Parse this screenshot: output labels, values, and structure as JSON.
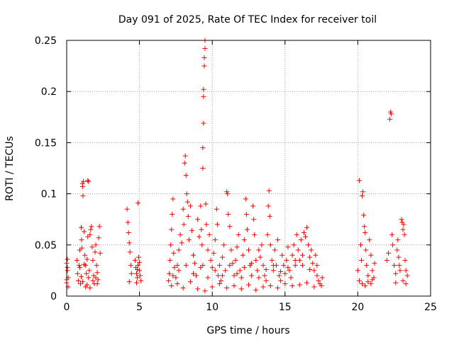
{
  "chart_data": {
    "type": "scatter",
    "title": "Day 091 of 2025, Rate Of TEC Index for receiver toil",
    "xlabel": "GPS time / hours",
    "ylabel": "ROTI / TECUs",
    "xlim": [
      0,
      25
    ],
    "ylim": [
      0,
      0.25
    ],
    "grid": true,
    "marker": "+",
    "marker_color": "#ff0000",
    "x_ticks": [
      0,
      5,
      10,
      15,
      20,
      25
    ],
    "x_tick_labels": [
      "0",
      "5",
      "10",
      "15",
      "20",
      "25"
    ],
    "y_ticks": [
      0,
      0.05,
      0.1,
      0.15,
      0.2,
      0.25
    ],
    "y_tick_labels": [
      "0",
      "0.05",
      "0.1",
      "0.15",
      "0.2",
      "0.25"
    ],
    "series": [
      {
        "name": "ROTI",
        "points": [
          [
            0.0,
            0.013
          ],
          [
            0.0,
            0.016
          ],
          [
            0.0,
            0.032
          ],
          [
            0.05,
            0.036
          ],
          [
            0.05,
            0.025
          ],
          [
            0.1,
            0.018
          ],
          [
            0.1,
            0.009
          ],
          [
            0.05,
            0.028
          ],
          [
            0.7,
            0.035
          ],
          [
            0.75,
            0.022
          ],
          [
            0.8,
            0.015
          ],
          [
            0.85,
            0.03
          ],
          [
            0.9,
            0.045
          ],
          [
            0.95,
            0.012
          ],
          [
            1.0,
            0.067
          ],
          [
            1.02,
            0.055
          ],
          [
            1.05,
            0.047
          ],
          [
            1.08,
            0.11
          ],
          [
            1.1,
            0.107
          ],
          [
            1.12,
            0.098
          ],
          [
            1.15,
            0.112
          ],
          [
            1.2,
            0.063
          ],
          [
            1.25,
            0.04
          ],
          [
            1.3,
            0.03
          ],
          [
            1.35,
            0.022
          ],
          [
            1.4,
            0.036
          ],
          [
            1.45,
            0.058
          ],
          [
            1.5,
            0.018
          ],
          [
            1.55,
            0.025
          ],
          [
            1.6,
            0.06
          ],
          [
            1.65,
            0.065
          ],
          [
            1.7,
            0.068
          ],
          [
            1.45,
            0.113
          ],
          [
            1.5,
            0.112
          ],
          [
            1.75,
            0.048
          ],
          [
            1.8,
            0.035
          ],
          [
            1.85,
            0.02
          ],
          [
            1.9,
            0.012
          ],
          [
            1.95,
            0.043
          ],
          [
            2.0,
            0.05
          ],
          [
            2.05,
            0.03
          ],
          [
            2.1,
            0.023
          ],
          [
            2.15,
            0.016
          ],
          [
            2.2,
            0.057
          ],
          [
            2.25,
            0.068
          ],
          [
            2.3,
            0.042
          ],
          [
            0.9,
            0.028
          ],
          [
            1.0,
            0.019
          ],
          [
            1.1,
            0.014
          ],
          [
            1.2,
            0.031
          ],
          [
            1.3,
            0.009
          ],
          [
            1.4,
            0.011
          ],
          [
            1.6,
            0.008
          ],
          [
            1.8,
            0.015
          ],
          [
            2.0,
            0.018
          ],
          [
            2.1,
            0.012
          ],
          [
            4.15,
            0.085
          ],
          [
            4.2,
            0.072
          ],
          [
            4.25,
            0.062
          ],
          [
            4.3,
            0.052
          ],
          [
            4.35,
            0.043
          ],
          [
            4.4,
            0.03
          ],
          [
            4.45,
            0.022
          ],
          [
            4.3,
            0.014
          ],
          [
            4.7,
            0.035
          ],
          [
            4.75,
            0.028
          ],
          [
            4.8,
            0.022
          ],
          [
            4.85,
            0.018
          ],
          [
            4.9,
            0.03
          ],
          [
            4.95,
            0.038
          ],
          [
            5.0,
            0.025
          ],
          [
            5.05,
            0.02
          ],
          [
            4.9,
            0.091
          ],
          [
            5.1,
            0.015
          ],
          [
            4.8,
            0.013
          ],
          [
            5.0,
            0.033
          ],
          [
            4.85,
            0.026
          ],
          [
            7.0,
            0.015
          ],
          [
            7.05,
            0.022
          ],
          [
            7.1,
            0.035
          ],
          [
            7.15,
            0.05
          ],
          [
            7.2,
            0.065
          ],
          [
            7.25,
            0.08
          ],
          [
            7.3,
            0.095
          ],
          [
            7.35,
            0.042
          ],
          [
            7.4,
            0.028
          ],
          [
            7.5,
            0.018
          ],
          [
            7.6,
            0.03
          ],
          [
            7.7,
            0.045
          ],
          [
            7.8,
            0.06
          ],
          [
            7.9,
            0.052
          ],
          [
            8.0,
            0.085
          ],
          [
            8.05,
            0.07
          ],
          [
            8.1,
            0.13
          ],
          [
            8.15,
            0.137
          ],
          [
            8.2,
            0.118
          ],
          [
            8.25,
            0.1
          ],
          [
            8.3,
            0.092
          ],
          [
            8.35,
            0.078
          ],
          [
            8.4,
            0.055
          ],
          [
            8.5,
            0.088
          ],
          [
            8.6,
            0.064
          ],
          [
            8.7,
            0.04
          ],
          [
            8.8,
            0.032
          ],
          [
            8.9,
            0.02
          ],
          [
            9.0,
            0.075
          ],
          [
            9.1,
            0.058
          ],
          [
            9.2,
            0.088
          ],
          [
            9.25,
            0.065
          ],
          [
            9.3,
            0.05
          ],
          [
            9.35,
            0.03
          ],
          [
            9.35,
            0.125
          ],
          [
            9.35,
            0.145
          ],
          [
            9.4,
            0.169
          ],
          [
            9.4,
            0.195
          ],
          [
            9.4,
            0.202
          ],
          [
            9.45,
            0.225
          ],
          [
            9.45,
            0.233
          ],
          [
            9.5,
            0.242
          ],
          [
            9.5,
            0.25
          ],
          [
            9.55,
            0.09
          ],
          [
            9.6,
            0.07
          ],
          [
            9.7,
            0.045
          ],
          [
            9.8,
            0.06
          ],
          [
            9.9,
            0.035
          ],
          [
            10.0,
            0.028
          ],
          [
            10.1,
            0.042
          ],
          [
            10.2,
            0.055
          ],
          [
            10.3,
            0.085
          ],
          [
            10.35,
            0.07
          ],
          [
            10.4,
            0.02
          ],
          [
            10.5,
            0.03
          ],
          [
            10.6,
            0.015
          ],
          [
            10.7,
            0.038
          ],
          [
            10.8,
            0.05
          ],
          [
            10.9,
            0.025
          ],
          [
            11.0,
            0.102
          ],
          [
            11.05,
            0.1
          ],
          [
            11.1,
            0.08
          ],
          [
            11.2,
            0.068
          ],
          [
            11.3,
            0.045
          ],
          [
            11.4,
            0.032
          ],
          [
            11.5,
            0.02
          ],
          [
            11.6,
            0.035
          ],
          [
            11.7,
            0.048
          ],
          [
            11.8,
            0.06
          ],
          [
            11.9,
            0.025
          ],
          [
            12.0,
            0.018
          ],
          [
            12.1,
            0.04
          ],
          [
            12.2,
            0.055
          ],
          [
            12.3,
            0.095
          ],
          [
            12.35,
            0.08
          ],
          [
            12.4,
            0.065
          ],
          [
            12.5,
            0.045
          ],
          [
            12.6,
            0.03
          ],
          [
            12.7,
            0.02
          ],
          [
            12.8,
            0.088
          ],
          [
            12.85,
            0.075
          ],
          [
            12.9,
            0.06
          ],
          [
            13.0,
            0.035
          ],
          [
            13.1,
            0.025
          ],
          [
            13.2,
            0.045
          ],
          [
            13.3,
            0.038
          ],
          [
            13.4,
            0.05
          ],
          [
            13.5,
            0.03
          ],
          [
            13.6,
            0.02
          ],
          [
            13.7,
            0.015
          ],
          [
            13.8,
            0.06
          ],
          [
            13.85,
            0.088
          ],
          [
            13.9,
            0.103
          ],
          [
            13.95,
            0.078
          ],
          [
            14.0,
            0.05
          ],
          [
            14.1,
            0.035
          ],
          [
            14.2,
            0.025
          ],
          [
            14.3,
            0.045
          ],
          [
            14.4,
            0.03
          ],
          [
            14.5,
            0.055
          ],
          [
            14.6,
            0.02
          ],
          [
            14.7,
            0.015
          ],
          [
            14.8,
            0.04
          ],
          [
            14.9,
            0.03
          ],
          [
            15.0,
            0.022
          ],
          [
            15.1,
            0.035
          ],
          [
            15.2,
            0.048
          ],
          [
            15.3,
            0.025
          ],
          [
            15.4,
            0.018
          ],
          [
            15.5,
            0.04
          ],
          [
            15.6,
            0.05
          ],
          [
            15.7,
            0.03
          ],
          [
            15.8,
            0.06
          ],
          [
            15.9,
            0.045
          ],
          [
            16.0,
            0.035
          ],
          [
            16.1,
            0.055
          ],
          [
            16.2,
            0.04
          ],
          [
            16.3,
            0.062
          ],
          [
            16.4,
            0.058
          ],
          [
            16.5,
            0.067
          ],
          [
            16.6,
            0.05
          ],
          [
            16.7,
            0.038
          ],
          [
            16.8,
            0.045
          ],
          [
            16.9,
            0.032
          ],
          [
            17.0,
            0.025
          ],
          [
            17.1,
            0.04
          ],
          [
            17.2,
            0.02
          ],
          [
            17.3,
            0.015
          ],
          [
            17.4,
            0.012
          ],
          [
            17.5,
            0.01
          ],
          [
            17.55,
            0.018
          ],
          [
            7.2,
            0.01
          ],
          [
            7.6,
            0.012
          ],
          [
            8.0,
            0.008
          ],
          [
            8.5,
            0.014
          ],
          [
            9.0,
            0.007
          ],
          [
            9.5,
            0.005
          ],
          [
            10.0,
            0.009
          ],
          [
            10.5,
            0.012
          ],
          [
            11.0,
            0.008
          ],
          [
            11.5,
            0.01
          ],
          [
            12.0,
            0.007
          ],
          [
            12.5,
            0.011
          ],
          [
            13.0,
            0.006
          ],
          [
            13.5,
            0.009
          ],
          [
            14.0,
            0.01
          ],
          [
            14.5,
            0.008
          ],
          [
            15.0,
            0.012
          ],
          [
            15.5,
            0.01
          ],
          [
            16.0,
            0.011
          ],
          [
            16.5,
            0.013
          ],
          [
            17.0,
            0.009
          ],
          [
            7.3,
            0.02
          ],
          [
            7.7,
            0.025
          ],
          [
            8.2,
            0.03
          ],
          [
            8.7,
            0.022
          ],
          [
            9.2,
            0.028
          ],
          [
            9.7,
            0.018
          ],
          [
            10.2,
            0.025
          ],
          [
            10.7,
            0.02
          ],
          [
            11.2,
            0.03
          ],
          [
            11.7,
            0.022
          ],
          [
            12.2,
            0.028
          ],
          [
            12.7,
            0.032
          ],
          [
            13.2,
            0.018
          ],
          [
            13.7,
            0.026
          ],
          [
            14.2,
            0.03
          ],
          [
            14.7,
            0.024
          ],
          [
            15.2,
            0.028
          ],
          [
            15.7,
            0.035
          ],
          [
            16.2,
            0.03
          ],
          [
            16.7,
            0.026
          ],
          [
            17.2,
            0.03
          ],
          [
            20.1,
            0.113
          ],
          [
            20.2,
            0.05
          ],
          [
            20.25,
            0.035
          ],
          [
            20.3,
            0.098
          ],
          [
            20.35,
            0.102
          ],
          [
            20.4,
            0.079
          ],
          [
            20.45,
            0.068
          ],
          [
            20.5,
            0.062
          ],
          [
            20.55,
            0.045
          ],
          [
            20.6,
            0.03
          ],
          [
            20.7,
            0.02
          ],
          [
            20.8,
            0.055
          ],
          [
            20.9,
            0.04
          ],
          [
            21.0,
            0.025
          ],
          [
            21.1,
            0.018
          ],
          [
            21.15,
            0.032
          ],
          [
            20.0,
            0.025
          ],
          [
            20.1,
            0.015
          ],
          [
            20.3,
            0.012
          ],
          [
            20.5,
            0.01
          ],
          [
            20.7,
            0.014
          ],
          [
            20.9,
            0.012
          ],
          [
            21.0,
            0.016
          ],
          [
            22.0,
            0.035
          ],
          [
            22.1,
            0.042
          ],
          [
            22.2,
            0.173
          ],
          [
            22.25,
            0.18
          ],
          [
            22.3,
            0.178
          ],
          [
            22.35,
            0.06
          ],
          [
            22.4,
            0.05
          ],
          [
            22.5,
            0.03
          ],
          [
            22.6,
            0.022
          ],
          [
            22.7,
            0.045
          ],
          [
            22.75,
            0.055
          ],
          [
            22.8,
            0.038
          ],
          [
            22.85,
            0.03
          ],
          [
            22.9,
            0.025
          ],
          [
            23.0,
            0.075
          ],
          [
            23.05,
            0.072
          ],
          [
            23.1,
            0.065
          ],
          [
            23.15,
            0.07
          ],
          [
            23.2,
            0.06
          ],
          [
            23.25,
            0.035
          ],
          [
            23.3,
            0.025
          ],
          [
            23.4,
            0.02
          ],
          [
            22.6,
            0.013
          ],
          [
            23.1,
            0.015
          ],
          [
            23.3,
            0.012
          ]
        ]
      }
    ]
  }
}
